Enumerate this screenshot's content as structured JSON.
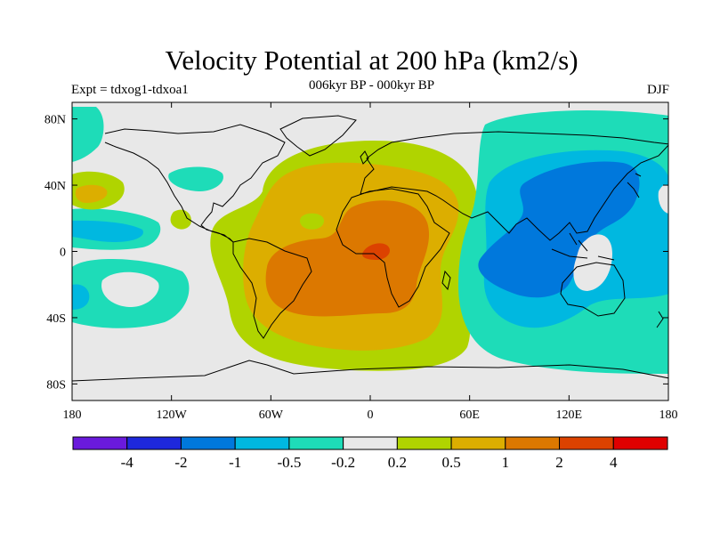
{
  "title": "Velocity Potential at 200 hPa (km2/s)",
  "subtitle": "006kyr BP - 000kyr BP",
  "experiment_label": "Expt = tdxog1-tdxoa1",
  "season_label": "DJF",
  "map": {
    "projection": "cylindrical equidistant",
    "lon_range": [
      -180,
      180
    ],
    "lat_range": [
      -90,
      90
    ],
    "x_ticks": [
      {
        "lon": -180,
        "label": "180"
      },
      {
        "lon": -120,
        "label": "120W"
      },
      {
        "lon": -60,
        "label": "60W"
      },
      {
        "lon": 0,
        "label": "0"
      },
      {
        "lon": 60,
        "label": "60E"
      },
      {
        "lon": 120,
        "label": "120E"
      },
      {
        "lon": 180,
        "label": "180"
      }
    ],
    "y_ticks": [
      {
        "lat": 80,
        "label": "80N"
      },
      {
        "lat": 40,
        "label": "40N"
      },
      {
        "lat": 0,
        "label": "0"
      },
      {
        "lat": -40,
        "label": "40S"
      },
      {
        "lat": -80,
        "label": "80S"
      }
    ],
    "colors": {
      "background": "#e8e8e8",
      "coast": "#000000",
      "pos_02_05": "#b0d400",
      "pos_05_1": "#dcae00",
      "pos_1_2": "#dc7800",
      "pos_2_4": "#dc4200",
      "neg_02_05": "#1edcb8",
      "neg_05_1": "#00b8e0",
      "neg_1_2": "#0078dc"
    }
  },
  "colorbar": {
    "colors": [
      "#6a1adc",
      "#1e28dc",
      "#0078dc",
      "#00b8e0",
      "#1edcb8",
      "#e8e8e8",
      "#b0d400",
      "#dcae00",
      "#dc7800",
      "#dc4200",
      "#e00000"
    ],
    "labels": [
      "-4",
      "-2",
      "-1",
      "-0.5",
      "-0.2",
      "0.2",
      "0.5",
      "1",
      "2",
      "4"
    ]
  }
}
